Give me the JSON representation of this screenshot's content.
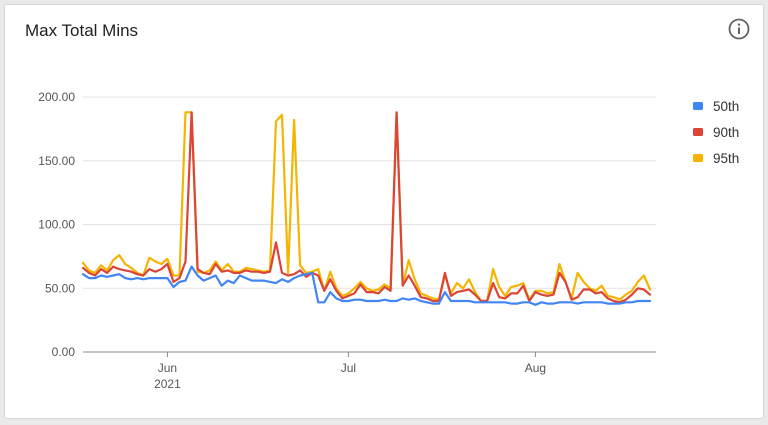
{
  "card": {
    "title": "Max Total Mins",
    "info_icon": "info-circle-icon"
  },
  "chart_data": {
    "type": "line",
    "title": "Max Total Mins",
    "xlabel": "",
    "ylabel": "",
    "ylim": [
      0,
      200
    ],
    "y_ticks": [
      "0.00",
      "50.00",
      "100.00",
      "150.00",
      "200.00"
    ],
    "x_ticks": [
      {
        "label": "Jun",
        "sublabel": "2021",
        "date": "2021-06-01"
      },
      {
        "label": "Jul",
        "sublabel": "",
        "date": "2021-07-01"
      },
      {
        "label": "Aug",
        "sublabel": "",
        "date": "2021-08-01"
      }
    ],
    "x_range": [
      "2021-05-18",
      "2021-08-21"
    ],
    "grid": true,
    "legend_position": "right",
    "x": [
      "2021-05-18",
      "2021-05-19",
      "2021-05-20",
      "2021-05-21",
      "2021-05-22",
      "2021-05-23",
      "2021-05-24",
      "2021-05-25",
      "2021-05-26",
      "2021-05-27",
      "2021-05-28",
      "2021-05-29",
      "2021-05-30",
      "2021-05-31",
      "2021-06-01",
      "2021-06-02",
      "2021-06-03",
      "2021-06-04",
      "2021-06-05",
      "2021-06-06",
      "2021-06-07",
      "2021-06-08",
      "2021-06-09",
      "2021-06-10",
      "2021-06-11",
      "2021-06-12",
      "2021-06-13",
      "2021-06-14",
      "2021-06-15",
      "2021-06-16",
      "2021-06-17",
      "2021-06-18",
      "2021-06-19",
      "2021-06-20",
      "2021-06-21",
      "2021-06-22",
      "2021-06-23",
      "2021-06-24",
      "2021-06-25",
      "2021-06-26",
      "2021-06-27",
      "2021-06-28",
      "2021-06-29",
      "2021-06-30",
      "2021-07-01",
      "2021-07-02",
      "2021-07-03",
      "2021-07-04",
      "2021-07-05",
      "2021-07-06",
      "2021-07-07",
      "2021-07-08",
      "2021-07-09",
      "2021-07-10",
      "2021-07-11",
      "2021-07-12",
      "2021-07-13",
      "2021-07-14",
      "2021-07-15",
      "2021-07-16",
      "2021-07-17",
      "2021-07-18",
      "2021-07-19",
      "2021-07-20",
      "2021-07-21",
      "2021-07-22",
      "2021-07-23",
      "2021-07-24",
      "2021-07-25",
      "2021-07-26",
      "2021-07-27",
      "2021-07-28",
      "2021-07-29",
      "2021-07-30",
      "2021-07-31",
      "2021-08-01",
      "2021-08-02",
      "2021-08-03",
      "2021-08-04",
      "2021-08-05",
      "2021-08-06",
      "2021-08-07",
      "2021-08-08",
      "2021-08-09",
      "2021-08-10",
      "2021-08-11",
      "2021-08-12",
      "2021-08-13",
      "2021-08-14",
      "2021-08-15",
      "2021-08-16",
      "2021-08-17",
      "2021-08-18",
      "2021-08-19",
      "2021-08-20"
    ],
    "series": [
      {
        "name": "50th",
        "color": "#4285f4",
        "values": [
          61,
          58,
          58,
          60,
          59,
          60,
          61,
          58,
          57,
          58,
          57,
          58,
          58,
          58,
          58,
          51,
          55,
          56,
          67,
          60,
          56,
          58,
          60,
          52,
          56,
          54,
          60,
          58,
          56,
          56,
          56,
          55,
          54,
          57,
          55,
          58,
          60,
          61,
          62,
          39,
          39,
          47,
          42,
          40,
          40,
          41,
          41,
          40,
          40,
          40,
          41,
          40,
          40,
          42,
          41,
          42,
          40,
          39,
          38,
          38,
          47,
          40,
          40,
          40,
          40,
          39,
          39,
          39,
          39,
          39,
          39,
          38,
          38,
          39,
          39,
          37,
          39,
          38,
          38,
          39,
          39,
          39,
          38,
          39,
          39,
          39,
          39,
          38,
          38,
          38,
          39,
          39,
          40,
          40,
          40
        ]
      },
      {
        "name": "90th",
        "color": "#db4437",
        "values": [
          66,
          62,
          60,
          65,
          62,
          67,
          65,
          64,
          63,
          61,
          60,
          65,
          63,
          65,
          69,
          55,
          58,
          71,
          188,
          65,
          62,
          61,
          69,
          63,
          64,
          62,
          62,
          64,
          63,
          63,
          62,
          63,
          86,
          62,
          60,
          61,
          64,
          59,
          62,
          60,
          48,
          57,
          48,
          42,
          44,
          46,
          53,
          47,
          47,
          46,
          51,
          48,
          188,
          52,
          60,
          52,
          43,
          42,
          40,
          40,
          62,
          44,
          47,
          48,
          49,
          45,
          40,
          40,
          54,
          43,
          42,
          46,
          46,
          52,
          40,
          47,
          45,
          44,
          45,
          62,
          55,
          41,
          43,
          49,
          49,
          46,
          47,
          42,
          40,
          39,
          41,
          45,
          50,
          49,
          45
        ]
      },
      {
        "name": "95th",
        "color": "#f4b400",
        "values": [
          70,
          64,
          62,
          68,
          64,
          72,
          76,
          69,
          66,
          62,
          60,
          74,
          71,
          69,
          73,
          60,
          60,
          188,
          188,
          63,
          62,
          64,
          71,
          64,
          69,
          63,
          63,
          66,
          65,
          64,
          63,
          64,
          181,
          186,
          62,
          182,
          68,
          62,
          63,
          65,
          48,
          63,
          50,
          44,
          46,
          50,
          55,
          50,
          48,
          49,
          53,
          50,
          187,
          52,
          72,
          57,
          46,
          44,
          42,
          41,
          60,
          46,
          54,
          50,
          57,
          47,
          40,
          40,
          65,
          51,
          44,
          51,
          52,
          54,
          41,
          48,
          48,
          46,
          47,
          69,
          55,
          42,
          62,
          55,
          50,
          48,
          52,
          44,
          43,
          41,
          45,
          48,
          55,
          60,
          49
        ]
      }
    ]
  }
}
